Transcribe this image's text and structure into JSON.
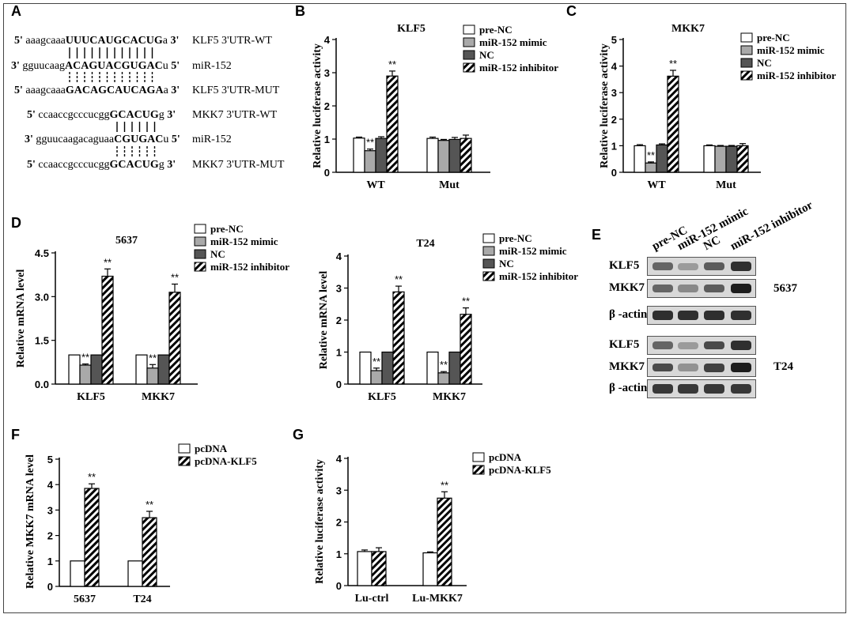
{
  "panels": {
    "A": {
      "label": "A",
      "rows": [
        {
          "prefix": "5'",
          "lower": " aaagcaaa",
          "bold": "UUUCAUGCACUG",
          "lower2": "a",
          "suffix": " 3'",
          "name": "KLF5 3'UTR-WT"
        },
        {
          "prefix": "3'",
          "lower": " gguucaag",
          "bold": "ACAGUACGUGAC",
          "lower2": "u",
          "suffix": " 5'",
          "name": "miR-152"
        },
        {
          "prefix": "5'",
          "lower": " aaagcaaa",
          "bold": "GACAGCAUCAGA",
          "lower2": "a",
          "suffix": " 3'",
          "name": "KLF5 3'UTR-MUT"
        },
        {
          "prefix": "5'",
          "lower": " ccaaccgcccucgg",
          "bold": "GCACUG",
          "lower2": "g",
          "suffix": " 3'",
          "name": "MKK7 3'UTR-WT"
        },
        {
          "prefix": "3'",
          "lower": " gguucaagacaguaa",
          "bold": "CGUGAC",
          "lower2": "u",
          "suffix": " 5'",
          "name": "miR-152"
        },
        {
          "prefix": "5'",
          "lower": " ccaaccgcccucgg",
          "bold": "GCACUG",
          "lower2": "g",
          "suffix": " 3'",
          "name": "MKK7 3'UTR-MUT"
        }
      ]
    },
    "E": {
      "label": "E",
      "lanes": [
        "pre-NC",
        "miR-152 mimic",
        "NC",
        "miR-152 inhibitor"
      ],
      "blots": [
        {
          "cell": "5637",
          "rows": [
            "KLF5",
            "MKK7",
            "β -actin"
          ]
        },
        {
          "cell": "T24",
          "rows": [
            "KLF5",
            "MKK7",
            "β -actin"
          ]
        }
      ]
    }
  },
  "chart_data": [
    {
      "panel": "B",
      "type": "bar",
      "title": "KLF5",
      "ylabel": "Relative luciferase activity",
      "xlabel": "",
      "ylim": [
        0,
        4
      ],
      "yticks": [
        0,
        1,
        2,
        3,
        4
      ],
      "yticklabels": [
        "0",
        "1",
        "2",
        "3",
        "4"
      ],
      "categories": [
        "WT",
        "Mut"
      ],
      "series": [
        {
          "name": "pre-NC",
          "pattern": "white",
          "values": [
            1.03,
            1.02
          ],
          "err": [
            0.03,
            0.04
          ],
          "sig": [
            "",
            ""
          ]
        },
        {
          "name": "miR-152 mimic",
          "pattern": "lightgray",
          "values": [
            0.65,
            0.96
          ],
          "err": [
            0.05,
            0.03
          ],
          "sig": [
            "**",
            ""
          ]
        },
        {
          "name": "NC",
          "pattern": "darkgray",
          "values": [
            1.02,
            0.99
          ],
          "err": [
            0.05,
            0.06
          ],
          "sig": [
            "",
            ""
          ]
        },
        {
          "name": "miR-152 inhibitor",
          "pattern": "hatch",
          "values": [
            2.9,
            1.02
          ],
          "err": [
            0.15,
            0.1
          ],
          "sig": [
            "**",
            ""
          ]
        }
      ],
      "legend": "top-right"
    },
    {
      "panel": "C",
      "type": "bar",
      "title": "MKK7",
      "ylabel": "Relative luciferase activity",
      "xlabel": "",
      "ylim": [
        0,
        5
      ],
      "yticks": [
        0,
        1,
        2,
        3,
        4,
        5
      ],
      "yticklabels": [
        "0",
        "1",
        "2",
        "3",
        "4",
        "5"
      ],
      "categories": [
        "WT",
        "Mut"
      ],
      "series": [
        {
          "name": "pre-NC",
          "pattern": "white",
          "values": [
            1.0,
            1.0
          ],
          "err": [
            0.04,
            0.03
          ],
          "sig": [
            "",
            ""
          ]
        },
        {
          "name": "miR-152 mimic",
          "pattern": "lightgray",
          "values": [
            0.35,
            0.98
          ],
          "err": [
            0.04,
            0.03
          ],
          "sig": [
            "**",
            ""
          ]
        },
        {
          "name": "NC",
          "pattern": "darkgray",
          "values": [
            1.03,
            0.98
          ],
          "err": [
            0.04,
            0.03
          ],
          "sig": [
            "",
            ""
          ]
        },
        {
          "name": "miR-152 inhibitor",
          "pattern": "hatch",
          "values": [
            3.62,
            1.0
          ],
          "err": [
            0.22,
            0.08
          ],
          "sig": [
            "**",
            ""
          ]
        }
      ],
      "legend": "top-right"
    },
    {
      "panel": "D",
      "type": "bar",
      "title": "5637",
      "ylabel": "Relative mRNA level",
      "xlabel": "",
      "ylim": [
        0,
        4.5
      ],
      "yticks": [
        0,
        1.5,
        3.0,
        4.5
      ],
      "yticklabels": [
        "0.0",
        "1.5",
        "3.0",
        "4.5"
      ],
      "categories": [
        "KLF5",
        "MKK7"
      ],
      "series": [
        {
          "name": "pre-NC",
          "pattern": "white",
          "values": [
            1.0,
            1.0
          ],
          "err": [
            0,
            0
          ],
          "sig": [
            "",
            ""
          ]
        },
        {
          "name": "miR-152 mimic",
          "pattern": "lightgray",
          "values": [
            0.65,
            0.55
          ],
          "err": [
            0.04,
            0.12
          ],
          "sig": [
            "**",
            "**"
          ]
        },
        {
          "name": "NC",
          "pattern": "darkgray",
          "values": [
            1.0,
            1.0
          ],
          "err": [
            0,
            0
          ],
          "sig": [
            "",
            ""
          ]
        },
        {
          "name": "miR-152 inhibitor",
          "pattern": "hatch",
          "values": [
            3.7,
            3.15
          ],
          "err": [
            0.25,
            0.28
          ],
          "sig": [
            "**",
            "**"
          ]
        }
      ],
      "legend": "top-right"
    },
    {
      "panel": "D2",
      "type": "bar",
      "title": "T24",
      "ylabel": "Relative mRNA level",
      "xlabel": "",
      "ylim": [
        0,
        4
      ],
      "yticks": [
        0,
        1,
        2,
        3,
        4
      ],
      "yticklabels": [
        "0",
        "1",
        "2",
        "3",
        "4"
      ],
      "categories": [
        "KLF5",
        "MKK7"
      ],
      "series": [
        {
          "name": "pre-NC",
          "pattern": "white",
          "values": [
            1.0,
            1.0
          ],
          "err": [
            0,
            0
          ],
          "sig": [
            "",
            ""
          ]
        },
        {
          "name": "miR-152 mimic",
          "pattern": "lightgray",
          "values": [
            0.42,
            0.35
          ],
          "err": [
            0.08,
            0.04
          ],
          "sig": [
            "**",
            "**"
          ]
        },
        {
          "name": "NC",
          "pattern": "darkgray",
          "values": [
            1.0,
            1.0
          ],
          "err": [
            0,
            0
          ],
          "sig": [
            "",
            ""
          ]
        },
        {
          "name": "miR-152 inhibitor",
          "pattern": "hatch",
          "values": [
            2.88,
            2.18
          ],
          "err": [
            0.18,
            0.2
          ],
          "sig": [
            "**",
            "**"
          ]
        }
      ],
      "legend": "top-right"
    },
    {
      "panel": "F",
      "type": "bar",
      "title": "",
      "ylabel": "Relative MKK7 mRNA level",
      "xlabel": "",
      "ylim": [
        0,
        5
      ],
      "yticks": [
        0,
        1,
        2,
        3,
        4,
        5
      ],
      "yticklabels": [
        "0",
        "1",
        "2",
        "3",
        "4",
        "5"
      ],
      "categories": [
        "5637",
        "T24"
      ],
      "series": [
        {
          "name": "pcDNA",
          "pattern": "white",
          "values": [
            1.0,
            1.0
          ],
          "err": [
            0,
            0
          ],
          "sig": [
            "",
            ""
          ]
        },
        {
          "name": "pcDNA-KLF5",
          "pattern": "hatch",
          "values": [
            3.85,
            2.7
          ],
          "err": [
            0.18,
            0.25
          ],
          "sig": [
            "**",
            "**"
          ]
        }
      ],
      "legend": "top-right"
    },
    {
      "panel": "G",
      "type": "bar",
      "title": "",
      "ylabel": "Relative luciferase activity",
      "xlabel": "",
      "ylim": [
        0,
        4
      ],
      "yticks": [
        0,
        1,
        2,
        3,
        4
      ],
      "yticklabels": [
        "0",
        "1",
        "2",
        "3",
        "4"
      ],
      "categories": [
        "Lu-ctrl",
        "Lu-MKK7"
      ],
      "series": [
        {
          "name": "pcDNA",
          "pattern": "white",
          "values": [
            1.07,
            1.03
          ],
          "err": [
            0.05,
            0.03
          ],
          "sig": [
            "",
            ""
          ]
        },
        {
          "name": "pcDNA-KLF5",
          "pattern": "hatch",
          "values": [
            1.07,
            2.75
          ],
          "err": [
            0.12,
            0.2
          ],
          "sig": [
            "",
            "**"
          ]
        }
      ],
      "legend": "top-left"
    }
  ]
}
